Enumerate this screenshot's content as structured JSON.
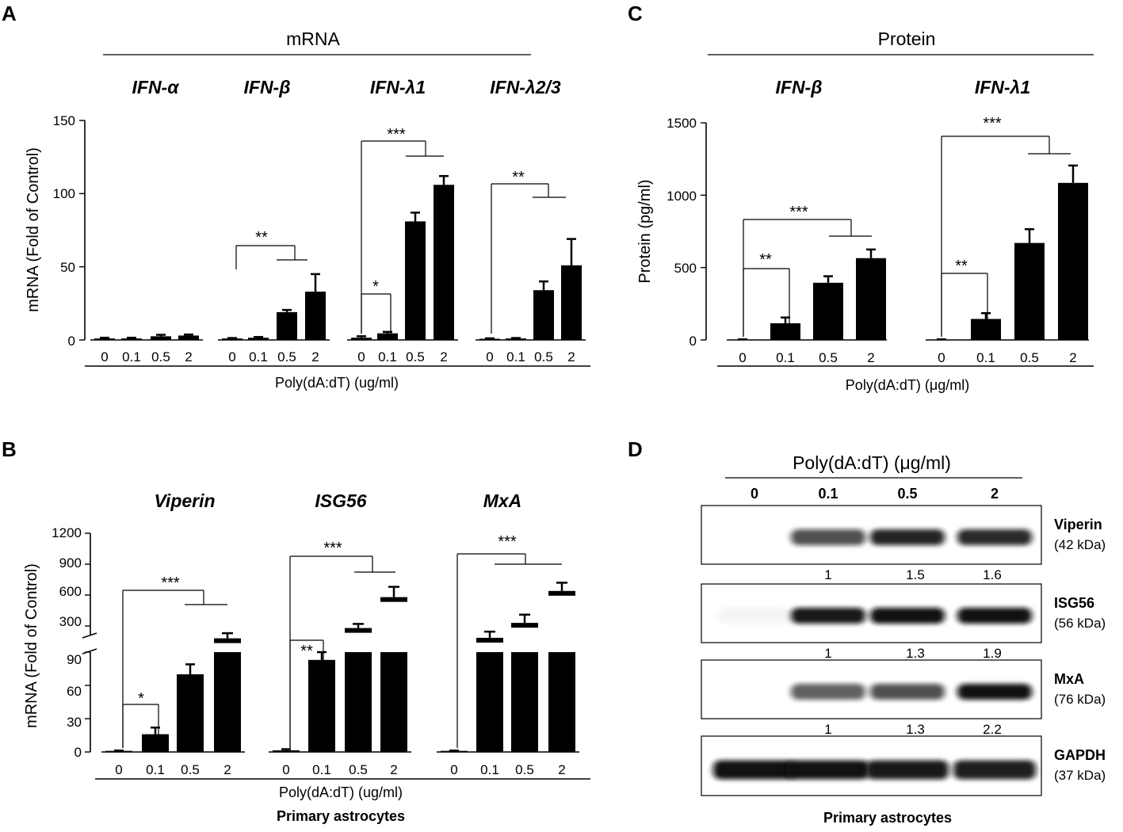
{
  "panelA": {
    "letter": "A",
    "header": "mRNA",
    "ylabel": "mRNA (Fold of Control)",
    "xlabel": "Poly(dA:dT) (ug/ml)",
    "yticks": [
      "0",
      "50",
      "100",
      "150"
    ],
    "doses": [
      "0",
      "0.1",
      "0.5",
      "2"
    ],
    "groups": [
      {
        "name": "IFN-α",
        "sig": []
      },
      {
        "name": "IFN-β",
        "sig": [
          {
            "label": "**"
          }
        ]
      },
      {
        "name": "IFN-λ1",
        "sig": [
          {
            "label": "*"
          },
          {
            "label": "***"
          }
        ]
      },
      {
        "name": "IFN-λ2/3",
        "sig": [
          {
            "label": "**"
          }
        ]
      }
    ]
  },
  "panelB": {
    "letter": "B",
    "ylabel": "mRNA (Fold of Control)",
    "xlabel": "Poly(dA:dT) (ug/ml)",
    "footer": "Primary astrocytes",
    "yticks_upper": [
      "300",
      "600",
      "900",
      "1200"
    ],
    "yticks_lower": [
      "0",
      "30",
      "60",
      "90"
    ],
    "doses": [
      "0",
      "0.1",
      "0.5",
      "2"
    ],
    "groups": [
      {
        "name": "Viperin",
        "sig": [
          {
            "label": "*"
          },
          {
            "label": "***"
          }
        ]
      },
      {
        "name": "ISG56",
        "sig": [
          {
            "label": "**"
          },
          {
            "label": "***"
          }
        ]
      },
      {
        "name": "MxA",
        "sig": [
          {
            "label": "***"
          }
        ]
      }
    ]
  },
  "panelC": {
    "letter": "C",
    "header": "Protein",
    "ylabel": "Protein (pg/ml)",
    "xlabel": "Poly(dA:dT) (μg/ml)",
    "yticks": [
      "0",
      "500",
      "1000",
      "1500"
    ],
    "doses": [
      "0",
      "0.1",
      "0.5",
      "2"
    ],
    "groups": [
      {
        "name": "IFN-β",
        "sig": [
          {
            "label": "**"
          },
          {
            "label": "***"
          }
        ]
      },
      {
        "name": "IFN-λ1",
        "sig": [
          {
            "label": "**"
          },
          {
            "label": "***"
          }
        ]
      }
    ]
  },
  "panelD": {
    "letter": "D",
    "header": "Poly(dA:dT) (μg/ml)",
    "footer": "Primary astrocytes",
    "doses": [
      "0",
      "0.1",
      "0.5",
      "2"
    ],
    "blots": [
      {
        "protein": "Viperin",
        "size": "(42 kDa)",
        "quant": [
          "1",
          "1.5",
          "1.6"
        ]
      },
      {
        "protein": "ISG56",
        "size": "(56 kDa)",
        "quant": [
          "1",
          "1.3",
          "1.9"
        ]
      },
      {
        "protein": "MxA",
        "size": "(76 kDa)",
        "quant": [
          "1",
          "1.3",
          "2.2"
        ]
      },
      {
        "protein": "GAPDH",
        "size": "(37 kDa)",
        "quant": []
      }
    ]
  },
  "chart_data": [
    {
      "type": "bar",
      "panel": "A",
      "categories": [
        "0",
        "0.1",
        "0.5",
        "2"
      ],
      "ylabel": "mRNA (Fold of Control)",
      "xlabel": "Poly(dA:dT) (ug/ml)",
      "ylim": [
        0,
        150
      ],
      "series": [
        {
          "name": "IFN-α",
          "values": [
            1,
            1,
            2.5,
            3
          ],
          "errors": [
            0.5,
            0.5,
            1,
            0.7
          ]
        },
        {
          "name": "IFN-β",
          "values": [
            1,
            1.5,
            19,
            33
          ],
          "errors": [
            0.3,
            0.5,
            1.5,
            12
          ]
        },
        {
          "name": "IFN-λ1",
          "values": [
            1.5,
            4.5,
            81,
            106
          ],
          "errors": [
            1,
            1,
            6,
            6
          ]
        },
        {
          "name": "IFN-λ2/3",
          "values": [
            0.8,
            1,
            34,
            51
          ],
          "errors": [
            0.3,
            0.3,
            6,
            18
          ]
        }
      ]
    },
    {
      "type": "bar",
      "panel": "B",
      "categories": [
        "0",
        "0.1",
        "0.5",
        "2"
      ],
      "ylabel": "mRNA (Fold of Control)",
      "xlabel": "Poly(dA:dT) (ug/ml)",
      "y_axis_break": [
        90,
        100
      ],
      "ylim": [
        0,
        1200
      ],
      "series": [
        {
          "name": "Viperin",
          "values": [
            1,
            16,
            70,
            180
          ],
          "errors": [
            0.3,
            6,
            9,
            50
          ]
        },
        {
          "name": "ISG56",
          "values": [
            1.5,
            83,
            280,
            580
          ],
          "errors": [
            1,
            7,
            40,
            100
          ]
        },
        {
          "name": "MxA",
          "values": [
            1,
            185,
            330,
            640
          ],
          "errors": [
            0.3,
            60,
            80,
            80
          ]
        }
      ]
    },
    {
      "type": "bar",
      "panel": "C",
      "categories": [
        "0",
        "0.1",
        "0.5",
        "2"
      ],
      "ylabel": "Protein (pg/ml)",
      "xlabel": "Poly(dA:dT) (μg/ml)",
      "ylim": [
        0,
        1500
      ],
      "series": [
        {
          "name": "IFN-β",
          "values": [
            3,
            115,
            395,
            565
          ],
          "errors": [
            1,
            40,
            45,
            60
          ]
        },
        {
          "name": "IFN-λ1",
          "values": [
            3,
            145,
            670,
            1085
          ],
          "errors": [
            1,
            40,
            95,
            120
          ]
        }
      ]
    }
  ]
}
